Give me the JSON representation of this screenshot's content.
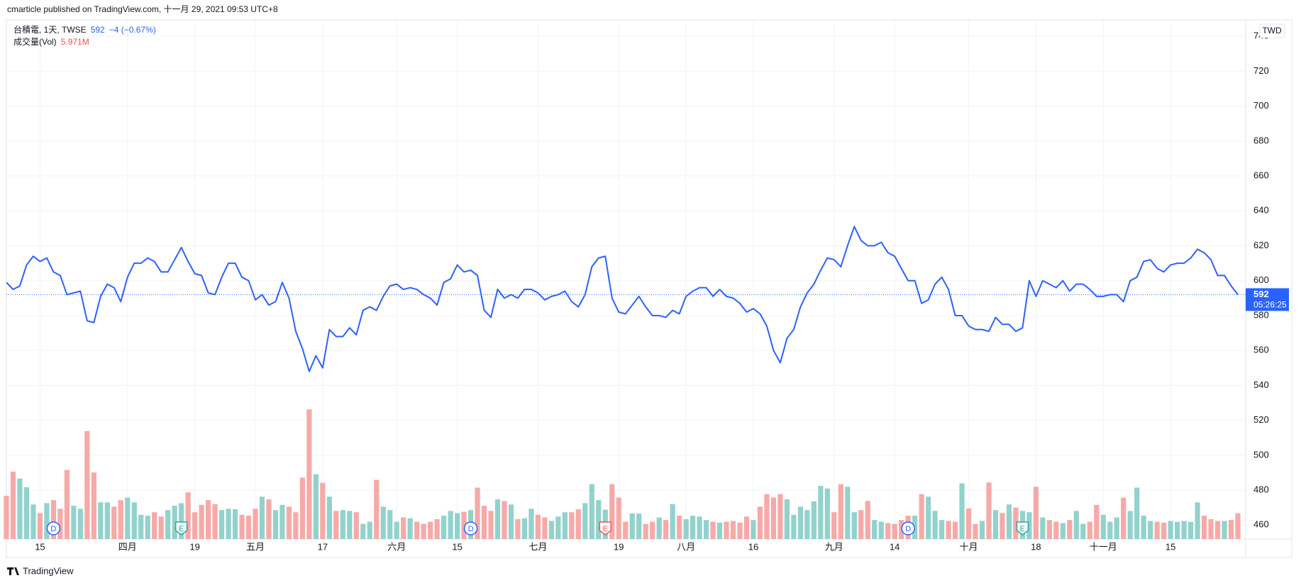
{
  "page": {
    "published": "cmarticle published on TradingView.com, 十一月 29, 2021 09:53 UTC+8",
    "logo": "TradingView"
  },
  "chart_data": {
    "type": "line",
    "currency": "TWD",
    "countdown": "05:26:25",
    "categories": [
      null,
      null,
      null,
      null,
      null,
      "15",
      null,
      null,
      null,
      null,
      null,
      null,
      null,
      null,
      null,
      null,
      null,
      null,
      "四月",
      null,
      null,
      null,
      null,
      null,
      null,
      null,
      null,
      null,
      "19",
      null,
      null,
      null,
      null,
      null,
      null,
      null,
      null,
      "五月",
      null,
      null,
      null,
      null,
      null,
      null,
      null,
      null,
      null,
      "17",
      null,
      null,
      null,
      null,
      null,
      null,
      null,
      null,
      null,
      null,
      "六月",
      null,
      null,
      null,
      null,
      null,
      null,
      null,
      null,
      "15",
      null,
      null,
      null,
      null,
      null,
      null,
      null,
      null,
      null,
      null,
      null,
      "七月",
      null,
      null,
      null,
      null,
      null,
      null,
      null,
      null,
      null,
      null,
      null,
      "19",
      null,
      null,
      null,
      null,
      null,
      null,
      null,
      null,
      null,
      "八月",
      null,
      null,
      null,
      null,
      null,
      null,
      null,
      null,
      null,
      "16",
      null,
      null,
      null,
      null,
      null,
      null,
      null,
      null,
      null,
      null,
      null,
      "九月",
      null,
      null,
      null,
      null,
      null,
      null,
      null,
      null,
      "14",
      null,
      null,
      null,
      null,
      null,
      null,
      null,
      null,
      null,
      null,
      "十月",
      null,
      null,
      null,
      null,
      null,
      null,
      null,
      null,
      null,
      "18",
      null,
      null,
      null,
      null,
      null,
      null,
      null,
      null,
      null,
      "十一月",
      null,
      null,
      null,
      null,
      null,
      null,
      null,
      null,
      null,
      "15",
      null,
      null,
      null,
      null,
      null,
      null,
      null,
      null,
      null,
      null
    ],
    "series": [
      {
        "name": "台積電, 1天, TWSE",
        "color": "#2962ff",
        "change_label": "−4 (−0.67%)",
        "values": [
          599,
          595,
          597,
          609,
          614,
          611,
          613,
          605,
          603,
          592,
          593,
          594,
          577,
          576,
          591,
          598,
          596,
          588,
          602,
          610,
          610,
          613,
          611,
          605,
          605,
          612,
          619,
          611,
          604,
          603,
          593,
          592,
          602,
          610,
          610,
          602,
          600,
          589,
          592,
          586,
          588,
          599,
          590,
          571,
          561,
          548,
          557,
          550,
          572,
          568,
          568,
          573,
          569,
          583,
          585,
          583,
          591,
          597,
          598,
          595,
          596,
          595,
          592,
          590,
          586,
          599,
          601,
          609,
          605,
          606,
          603,
          583,
          579,
          595,
          590,
          592,
          590,
          595,
          595,
          593,
          589,
          591,
          592,
          594,
          588,
          585,
          592,
          608,
          613,
          614,
          590,
          582,
          581,
          586,
          591,
          585,
          580,
          580,
          579,
          583,
          581,
          591,
          594,
          596,
          596,
          591,
          595,
          591,
          590,
          587,
          582,
          584,
          581,
          574,
          560,
          553,
          567,
          572,
          585,
          593,
          598,
          606,
          613,
          612,
          608,
          620,
          631,
          623,
          620,
          620,
          622,
          616,
          614,
          607,
          600,
          600,
          587,
          589,
          598,
          602,
          595,
          580,
          580,
          574,
          572,
          572,
          571,
          579,
          575,
          575,
          571,
          573,
          600,
          591,
          600,
          598,
          596,
          600,
          594,
          598,
          598,
          595,
          591,
          591,
          592,
          592,
          588,
          600,
          602,
          611,
          612,
          607,
          605,
          609,
          610,
          610,
          613,
          618,
          616,
          612,
          603,
          603,
          597,
          592
        ]
      },
      {
        "name": "成交量(Vol)",
        "type": "bar",
        "axis": "y2",
        "up_color": "#92d2cc",
        "down_color": "#f7a9a7",
        "label_color": "#ef5350",
        "last_label": "5.971M",
        "values": [
          10,
          15.6,
          14,
          12,
          8,
          6,
          8.3,
          9,
          7,
          16,
          7.7,
          7,
          25,
          15.4,
          8.5,
          8.5,
          7.5,
          9,
          9.6,
          8.5,
          5.6,
          5.4,
          6.2,
          5.2,
          6.7,
          7.7,
          8.3,
          10.8,
          6.2,
          7.9,
          9,
          8.1,
          6.7,
          7,
          6.9,
          5.6,
          5.4,
          7,
          9.8,
          9.2,
          6.7,
          7.9,
          7.5,
          6.2,
          14.2,
          30,
          15,
          13,
          9.8,
          6.5,
          6.7,
          6.5,
          6.2,
          3.5,
          4,
          13.7,
          7.5,
          6.7,
          4,
          5,
          4.8,
          4,
          3.5,
          4,
          4.6,
          5.4,
          6.5,
          6,
          6.3,
          6.7,
          11.9,
          7.7,
          6.5,
          9.2,
          8.8,
          8,
          4.6,
          4.8,
          7,
          5.6,
          5,
          4.2,
          5.2,
          6.2,
          6.2,
          6.9,
          8.3,
          12.7,
          9,
          6.8,
          12.7,
          9.6,
          4,
          5.9,
          5.9,
          3.5,
          4,
          5,
          4.4,
          8.1,
          5.4,
          4.6,
          5.4,
          5.2,
          4.4,
          4,
          3.8,
          4,
          4.2,
          3.8,
          5.2,
          4.4,
          7.5,
          10.4,
          9.6,
          10.4,
          9.2,
          5.6,
          7.5,
          6.7,
          8.7,
          12.3,
          11.7,
          6.2,
          12.7,
          12.1,
          6.2,
          6.7,
          8.8,
          4.4,
          4,
          3.7,
          3.5,
          4.4,
          5.4,
          5.4,
          10.4,
          9.8,
          6.5,
          4.4,
          4.2,
          4,
          12.9,
          7.1,
          3.5,
          4.2,
          13.1,
          6.7,
          6,
          8,
          7.3,
          6.5,
          6.2,
          12.1,
          5,
          4.4,
          4,
          3.7,
          4.4,
          6.5,
          3.5,
          4,
          7.9,
          5.6,
          4,
          5,
          9.6,
          6.5,
          11.9,
          5.4,
          4.2,
          4,
          3.8,
          4.2,
          4,
          4.2,
          4,
          8.5,
          5.4,
          4.6,
          4.2,
          4.2,
          4.4,
          5.971
        ]
      }
    ],
    "events": [
      {
        "label": "D",
        "bar": 7,
        "color": "#2962ff",
        "shape": "circle"
      },
      {
        "label": "E",
        "bar": 26,
        "color": "#26a69a",
        "shape": "flag"
      },
      {
        "label": "D",
        "bar": 69,
        "color": "#2962ff",
        "shape": "circle"
      },
      {
        "label": "E",
        "bar": 89,
        "color": "#ef5350",
        "shape": "flag"
      },
      {
        "label": "D",
        "bar": 134,
        "color": "#2962ff",
        "shape": "circle"
      },
      {
        "label": "E",
        "bar": 151,
        "color": "#26a69a",
        "shape": "flag"
      }
    ],
    "ylim": [
      452,
      749
    ],
    "yticks": [
      460,
      480,
      500,
      520,
      540,
      560,
      580,
      600,
      620,
      640,
      660,
      680,
      700,
      720,
      740
    ],
    "y2lim": [
      0,
      120
    ],
    "grid": true
  }
}
